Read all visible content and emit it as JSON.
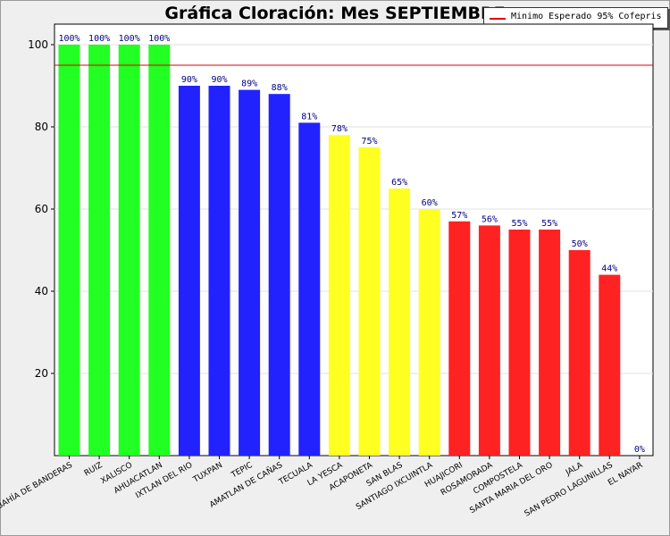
{
  "chart_data": {
    "type": "bar",
    "title": "Gráfica Cloración: Mes SEPTIEMBRE",
    "xlabel": "",
    "ylabel": "",
    "ylim": [
      0,
      100
    ],
    "yticks": [
      20,
      40,
      60,
      80,
      100
    ],
    "grid": true,
    "categories": [
      "BAHÍA DE BANDERAS",
      "RUIZ",
      "XALISCO",
      "AHUACATLAN",
      "IXTLAN DEL RIO",
      "TUXPAN",
      "TEPIC",
      "AMATLAN DE CAÑAS",
      "TECUALA",
      "LA YESCA",
      "ACAPONETA",
      "SAN BLAS",
      "SANTIAGO IXCUINTLA",
      "HUAJICORI",
      "ROSAMORADA",
      "COMPOSTELA",
      "SANTA MARIA DEL ORO",
      "JALA",
      "SAN PEDRO LAGUNILLAS",
      "EL NAYAR"
    ],
    "values": [
      100,
      100,
      100,
      100,
      90,
      90,
      89,
      88,
      81,
      78,
      75,
      65,
      60,
      57,
      56,
      55,
      55,
      50,
      44,
      0
    ],
    "value_labels": [
      "100%",
      "100%",
      "100%",
      "100%",
      "90%",
      "90%",
      "89%",
      "88%",
      "81%",
      "78%",
      "75%",
      "65%",
      "60%",
      "57%",
      "56%",
      "55%",
      "55%",
      "50%",
      "44%",
      "0%"
    ],
    "bar_colors": [
      "#22ff22",
      "#22ff22",
      "#22ff22",
      "#22ff22",
      "#2222ff",
      "#2222ff",
      "#2222ff",
      "#2222ff",
      "#2222ff",
      "#ffff22",
      "#ffff22",
      "#ffff22",
      "#ffff22",
      "#ff2222",
      "#ff2222",
      "#ff2222",
      "#ff2222",
      "#ff2222",
      "#ff2222",
      "#ff2222"
    ],
    "reference_line": {
      "value": 95,
      "label": "Minimo Esperado 95% Cofepris",
      "color": "#dd0000"
    },
    "legend_position": "top-right"
  }
}
